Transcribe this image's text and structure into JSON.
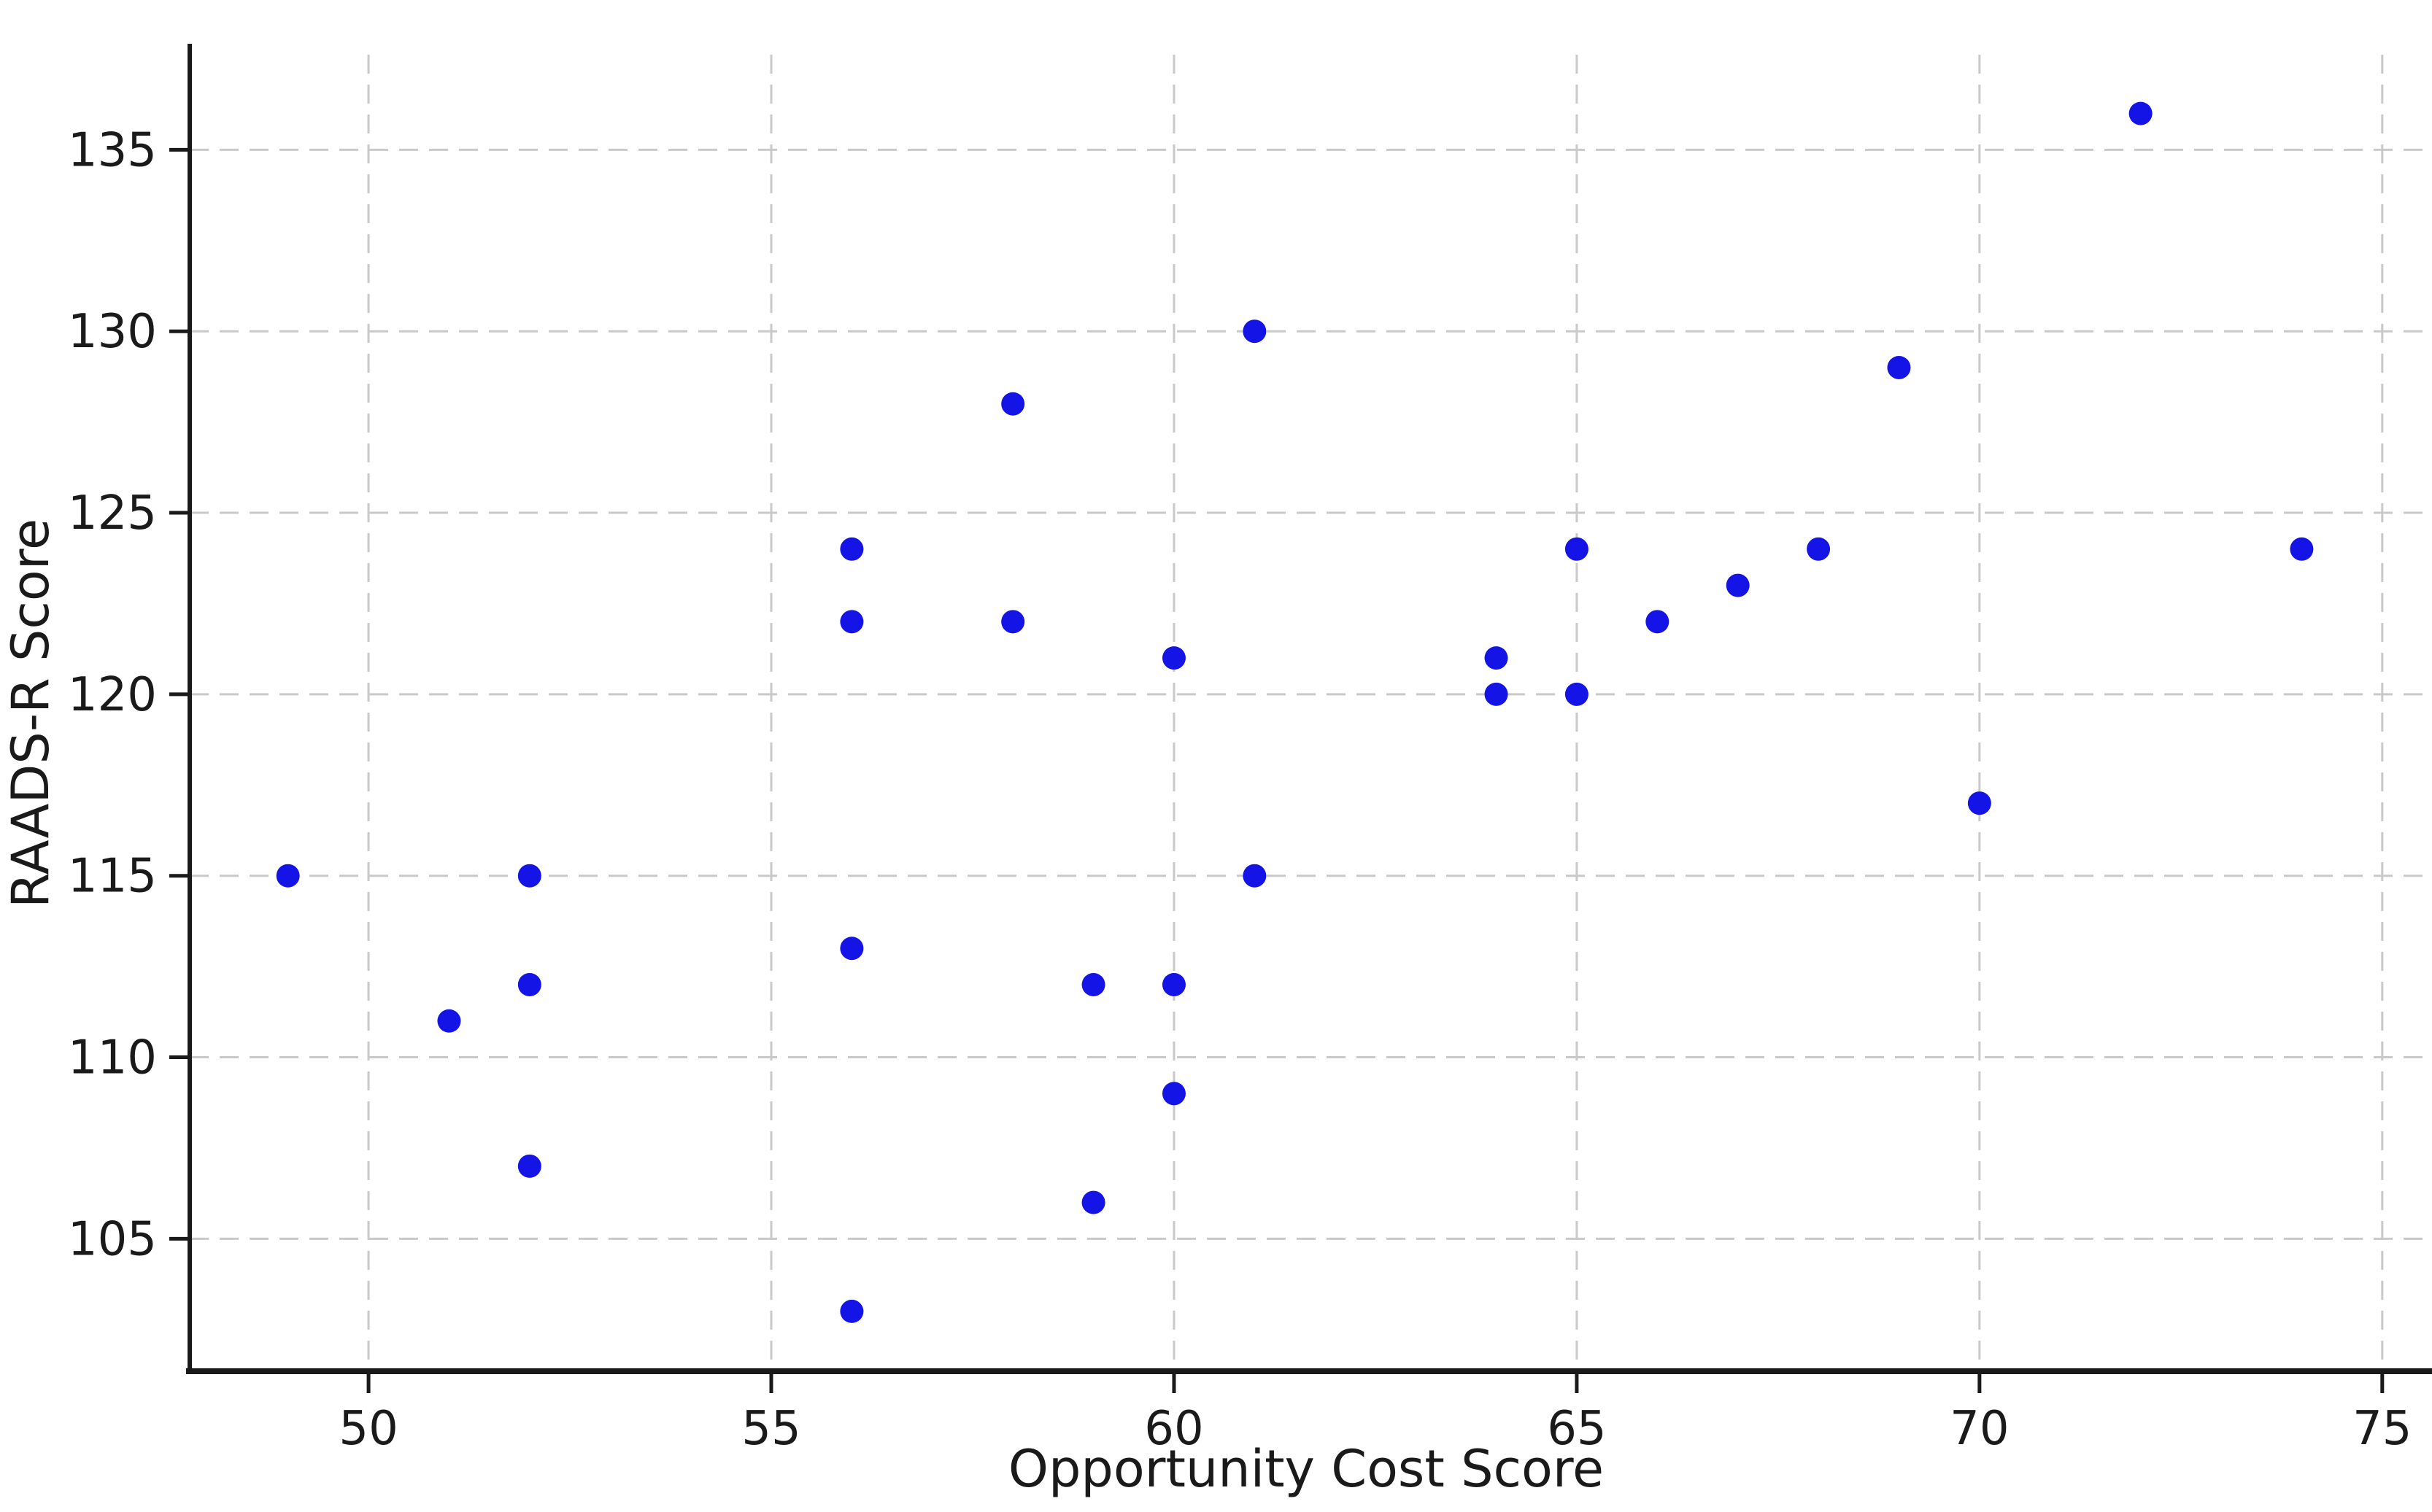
{
  "colors": {
    "background": "#ffffff",
    "marker": "#1414e6",
    "grid": "#c9c9c9",
    "spine": "#1a1a1a",
    "text": "#1a1a1a"
  },
  "chart_data": {
    "type": "scatter",
    "title": "",
    "xlabel": "Opportunity Cost Score",
    "ylabel": "RAADS-R Score",
    "x_ticks": [
      50,
      55,
      60,
      65,
      70,
      75
    ],
    "y_ticks": [
      105,
      110,
      115,
      120,
      125,
      130,
      135
    ],
    "xlim": [
      47.78,
      75.5
    ],
    "ylim": [
      101.35,
      137.62
    ],
    "grid": true,
    "grid_style": "dashed",
    "legend": false,
    "marker_color": "#1414e6",
    "marker_radius": 16,
    "points": [
      [
        49,
        115
      ],
      [
        51,
        111
      ],
      [
        52,
        107
      ],
      [
        52,
        112
      ],
      [
        52,
        115
      ],
      [
        56,
        103
      ],
      [
        56,
        113
      ],
      [
        56,
        122
      ],
      [
        56,
        124
      ],
      [
        58,
        122
      ],
      [
        58,
        128
      ],
      [
        59,
        106
      ],
      [
        59,
        112
      ],
      [
        60,
        109
      ],
      [
        60,
        112
      ],
      [
        60,
        121
      ],
      [
        61,
        115
      ],
      [
        61,
        130
      ],
      [
        64,
        120
      ],
      [
        64,
        121
      ],
      [
        65,
        120
      ],
      [
        65,
        124
      ],
      [
        66,
        122
      ],
      [
        67,
        123
      ],
      [
        68,
        124
      ],
      [
        69,
        129
      ],
      [
        70,
        117
      ],
      [
        72,
        136
      ],
      [
        74,
        124
      ]
    ]
  }
}
